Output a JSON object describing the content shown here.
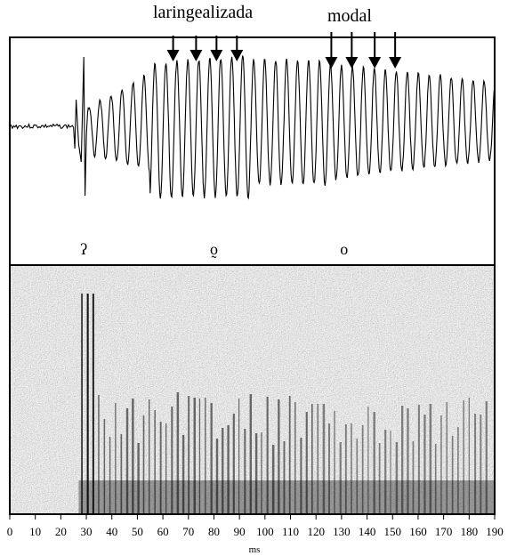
{
  "annotations": {
    "laryngealized": "laringealizada",
    "modal": "modal"
  },
  "segments": [
    {
      "symbol": "ʔ",
      "time_ms": 29
    },
    {
      "symbol": "o̰",
      "time_ms": 80
    },
    {
      "symbol": "o",
      "time_ms": 131
    }
  ],
  "arrows": {
    "laryngealized_times_ms": [
      64,
      73,
      81,
      89
    ],
    "modal_times_ms": [
      126,
      134,
      143,
      151
    ]
  },
  "x_axis": {
    "unit": "ms",
    "min": 0,
    "max": 190,
    "ticks": [
      0,
      10,
      20,
      30,
      40,
      50,
      60,
      70,
      80,
      90,
      100,
      110,
      120,
      130,
      140,
      150,
      160,
      170,
      180,
      190
    ]
  },
  "colors": {
    "ink": "#000000",
    "paper": "#ffffff",
    "spectrogram_bg": "#8c8c8c"
  }
}
